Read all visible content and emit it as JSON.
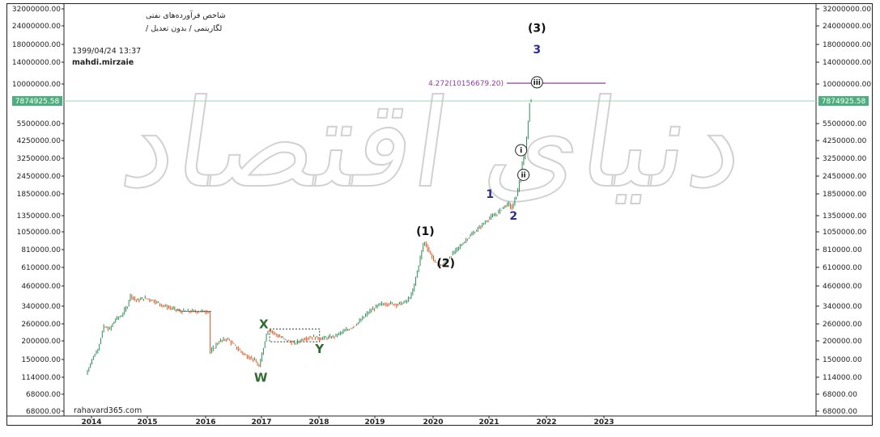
{
  "header": {
    "title": "شاخص فرآورده‌های نفتی",
    "subtitle": "لگاریتمی / بدون تعدیل /",
    "datetime": "1399/04/24 13:37",
    "author": "mahdi.mirzaie"
  },
  "watermark": {
    "text": "دنیای اقتصاد"
  },
  "footer": {
    "source": "rahavard365.com"
  },
  "colors": {
    "up": "#2e8b57",
    "down": "#d9541e",
    "last_price_line": "#9fd5b8",
    "last_price_tag": "#4caf7d",
    "fib_line": "#8e3ba0",
    "wave_blue": "#2c2f8c",
    "wave_green": "#2f6b2f",
    "wave_black": "#111111"
  },
  "chart_data": {
    "type": "candlestick",
    "scale": "log",
    "grid": false,
    "x_axis": {
      "labels": [
        "2014",
        "2015",
        "2016",
        "2017",
        "2018",
        "2019",
        "2020",
        "2021",
        "2022",
        "2023"
      ],
      "range": [
        2013.6,
        2026.4
      ]
    },
    "y_axis": {
      "labels": [
        "32000000.00",
        "24000000.00",
        "18000000.00",
        "14000000.00",
        "10000000.00",
        "7874925.58",
        "5500000.00",
        "4250000.00",
        "3250000.00",
        "2450000.00",
        "1850000.00",
        "1350000.00",
        "1050000.00",
        "810000.00",
        "610000.00",
        "460000.00",
        "340000.00",
        "260000.00",
        "200000.00",
        "150000.00",
        "114000.00",
        "68000.00",
        "68000.00"
      ],
      "right_labels": [
        "32000000.00",
        "24000000.00",
        "18000000.00",
        "14000000.00",
        "10000000.00",
        "5500000.00",
        "4250000.00",
        "3250000.00",
        "2450000.00",
        "1850000.00",
        "1350000.00",
        "1050000.00",
        "810000.00",
        "610000.00",
        "460000.00",
        "340000.00",
        "260000.00",
        "200000.00",
        "150000.00",
        "114000.00",
        "68000.00",
        "68000.00"
      ],
      "range": [
        60000,
        34000000
      ]
    },
    "last_price": {
      "label": "7874925.58",
      "value": 7874925.58
    },
    "fib_target": {
      "label": "4.272(10156679.20)",
      "value": 10156679.2,
      "x_start": 2021.4,
      "x_end": 2023.0
    },
    "price_path": [
      [
        2014.0,
        114000
      ],
      [
        2014.1,
        145000
      ],
      [
        2014.2,
        170000
      ],
      [
        2014.3,
        240000
      ],
      [
        2014.4,
        230000
      ],
      [
        2014.5,
        270000
      ],
      [
        2014.6,
        285000
      ],
      [
        2014.7,
        330000
      ],
      [
        2014.75,
        395000
      ],
      [
        2014.85,
        360000
      ],
      [
        2015.0,
        375000
      ],
      [
        2015.15,
        360000
      ],
      [
        2015.3,
        335000
      ],
      [
        2015.45,
        320000
      ],
      [
        2015.6,
        305000
      ],
      [
        2015.8,
        305000
      ],
      [
        2016.0,
        305000
      ],
      [
        2016.1,
        305000
      ],
      [
        2016.11,
        160000
      ],
      [
        2016.25,
        190000
      ],
      [
        2016.4,
        200000
      ],
      [
        2016.55,
        175000
      ],
      [
        2016.7,
        155000
      ],
      [
        2016.85,
        145000
      ],
      [
        2016.95,
        128000
      ],
      [
        2017.05,
        200000
      ],
      [
        2017.1,
        232000
      ],
      [
        2017.25,
        210000
      ],
      [
        2017.4,
        195000
      ],
      [
        2017.55,
        185000
      ],
      [
        2017.7,
        200000
      ],
      [
        2017.85,
        205000
      ],
      [
        2018.0,
        200000
      ],
      [
        2018.2,
        205000
      ],
      [
        2018.35,
        220000
      ],
      [
        2018.5,
        235000
      ],
      [
        2018.65,
        260000
      ],
      [
        2018.8,
        300000
      ],
      [
        2018.9,
        320000
      ],
      [
        2019.0,
        340000
      ],
      [
        2019.15,
        345000
      ],
      [
        2019.3,
        340000
      ],
      [
        2019.45,
        355000
      ],
      [
        2019.55,
        400000
      ],
      [
        2019.65,
        600000
      ],
      [
        2019.75,
        910000
      ],
      [
        2019.85,
        760000
      ],
      [
        2019.95,
        640000
      ],
      [
        2020.05,
        620000
      ],
      [
        2020.2,
        720000
      ],
      [
        2020.35,
        830000
      ],
      [
        2020.5,
        960000
      ],
      [
        2020.7,
        1130000
      ],
      [
        2020.85,
        1290000
      ],
      [
        2021.0,
        1400000
      ],
      [
        2021.1,
        1550000
      ],
      [
        2021.2,
        1620000
      ],
      [
        2021.25,
        1500000
      ],
      [
        2021.3,
        1750000
      ],
      [
        2021.35,
        2000000
      ],
      [
        2021.4,
        2700000
      ],
      [
        2021.45,
        3300000
      ],
      [
        2021.5,
        4500000
      ],
      [
        2021.55,
        7874925.58
      ]
    ],
    "patterns": {
      "xy_box": {
        "x": [
          2017.1,
          2017.95
        ],
        "y": [
          190000,
          232000
        ]
      }
    },
    "annotations": [
      {
        "label": "(3)",
        "x": 2021.65,
        "y": 23500000,
        "style": "black"
      },
      {
        "label": "3",
        "x": 2021.65,
        "y": 16800000,
        "style": "blue"
      },
      {
        "label": "iii",
        "x": 2021.65,
        "y": 10200000,
        "style": "circle"
      },
      {
        "label": "i",
        "x": 2021.38,
        "y": 3550000,
        "style": "circle"
      },
      {
        "label": "ii",
        "x": 2021.42,
        "y": 2420000,
        "style": "circle"
      },
      {
        "label": "1",
        "x": 2020.85,
        "y": 1780000,
        "style": "blue"
      },
      {
        "label": "2",
        "x": 2021.25,
        "y": 1270000,
        "style": "blue"
      },
      {
        "label": "(1)",
        "x": 2019.75,
        "y": 1000000,
        "style": "black"
      },
      {
        "label": "(2)",
        "x": 2020.1,
        "y": 610000,
        "style": "black"
      },
      {
        "label": "X",
        "x": 2017.0,
        "y": 235000,
        "style": "green"
      },
      {
        "label": "Y",
        "x": 2017.95,
        "y": 160000,
        "style": "green"
      },
      {
        "label": "W",
        "x": 2016.95,
        "y": 102000,
        "style": "green"
      }
    ]
  }
}
